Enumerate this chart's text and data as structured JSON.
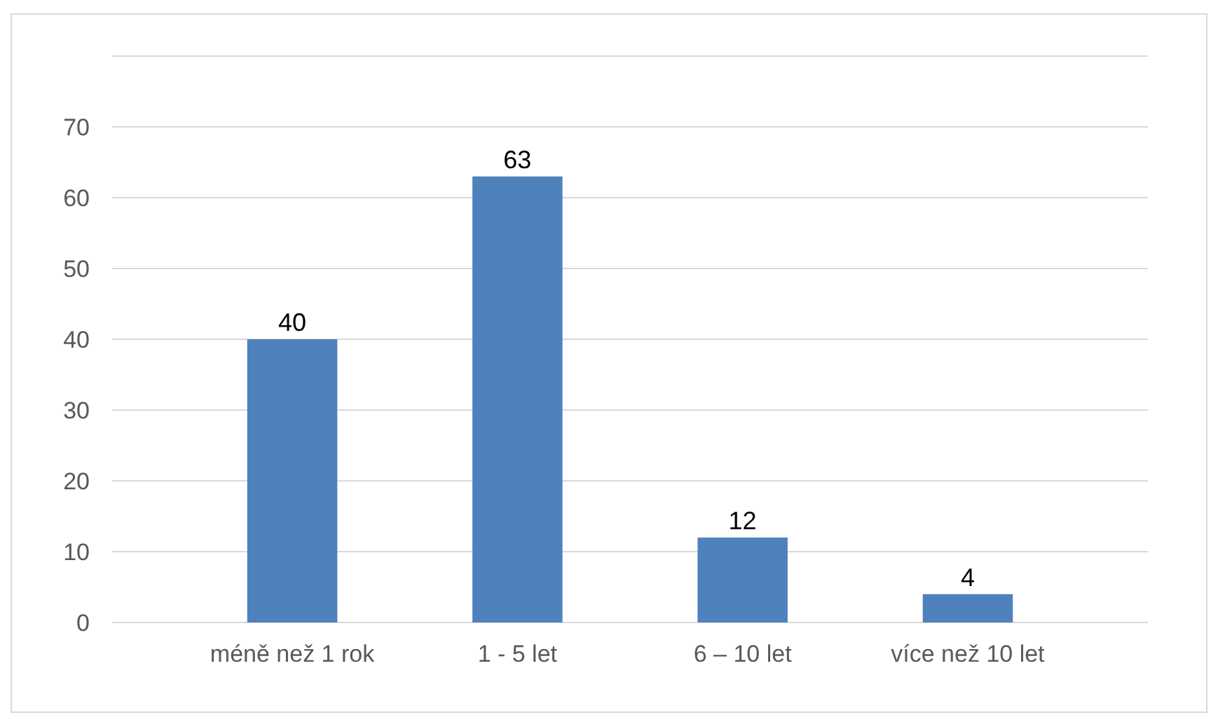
{
  "chart_data": {
    "type": "bar",
    "categories": [
      "méně než 1 rok",
      "1 - 5 let",
      "6 – 10 let",
      "více než 10 let"
    ],
    "values": [
      40,
      63,
      12,
      4
    ],
    "color": "#4f81bd",
    "ylim": [
      0,
      80
    ],
    "yticks": [
      0,
      10,
      20,
      30,
      40,
      50,
      60,
      70,
      {
        "value": 80,
        "label": null
      }
    ],
    "grid": "y",
    "data_labels": true
  }
}
